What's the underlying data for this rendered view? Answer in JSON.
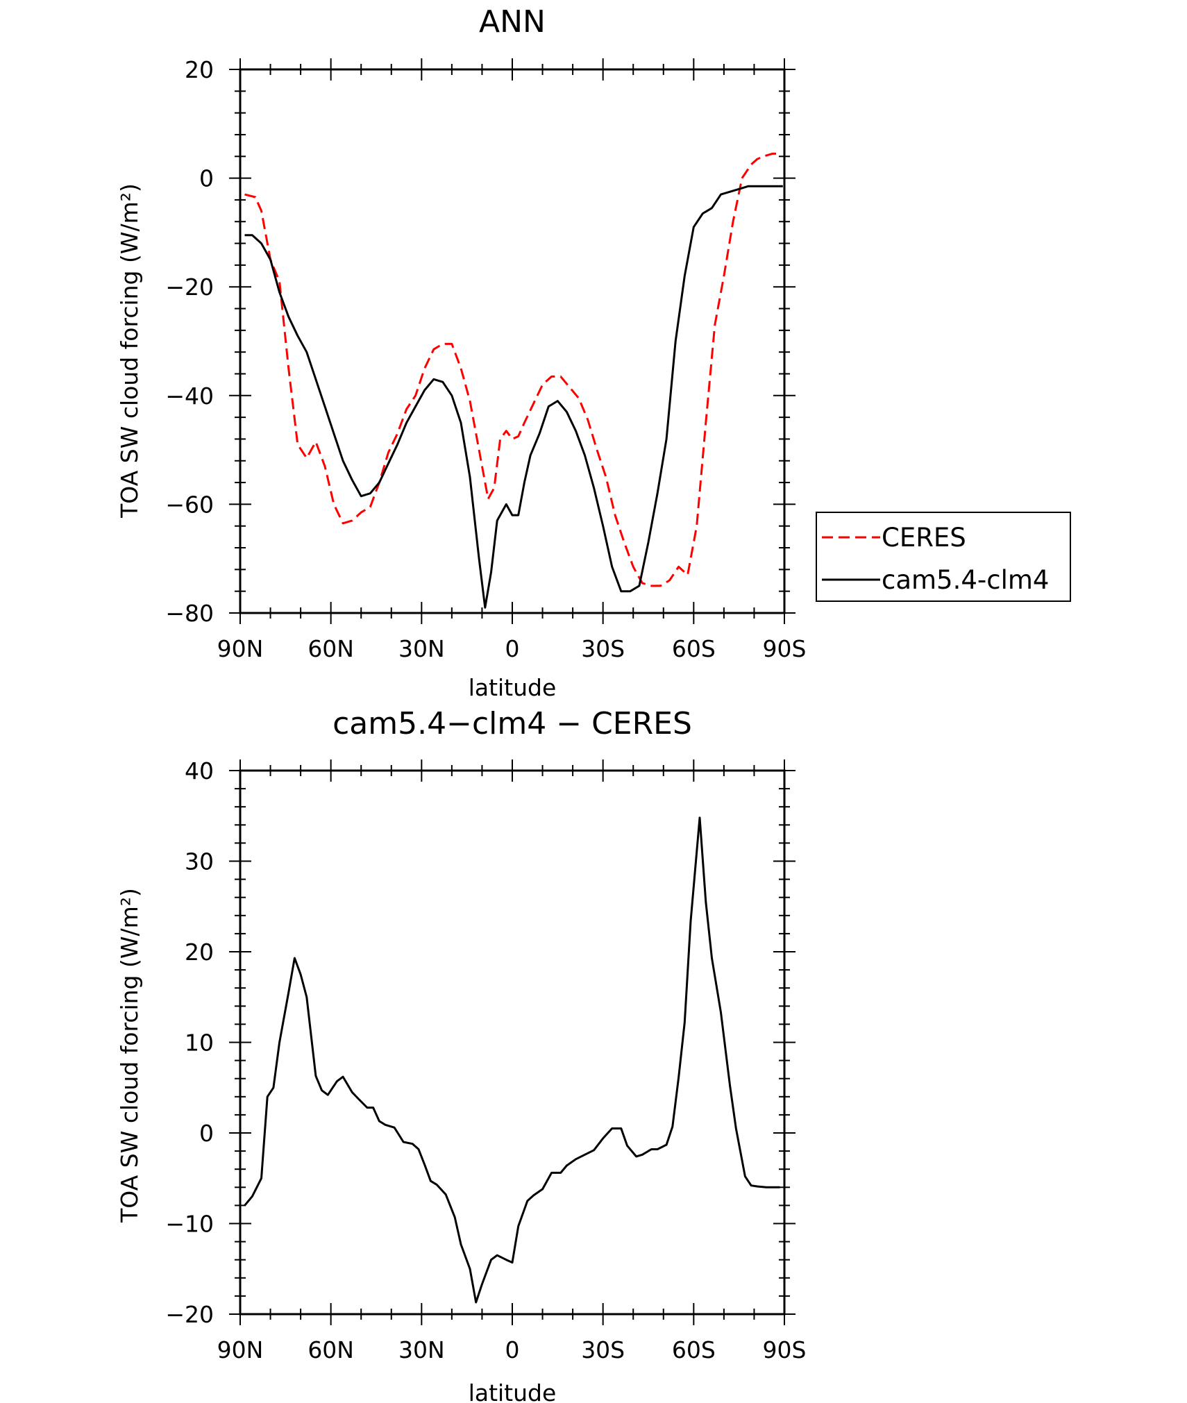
{
  "chart_data": [
    {
      "type": "line",
      "title": "ANN",
      "xlabel": "latitude",
      "ylabel": "TOA SW cloud forcing (W/m²)",
      "xlim": [
        90,
        -90
      ],
      "ylim": [
        -80,
        20
      ],
      "xticks": [
        {
          "value": 90,
          "label": "90N"
        },
        {
          "value": 60,
          "label": "60N"
        },
        {
          "value": 30,
          "label": "30N"
        },
        {
          "value": 0,
          "label": "0"
        },
        {
          "value": -30,
          "label": "30S"
        },
        {
          "value": -60,
          "label": "60S"
        },
        {
          "value": -90,
          "label": "90S"
        }
      ],
      "yticks": [
        {
          "value": 20,
          "label": "20"
        },
        {
          "value": 0,
          "label": "0"
        },
        {
          "value": -20,
          "label": "−20"
        },
        {
          "value": -40,
          "label": "−40"
        },
        {
          "value": -60,
          "label": "−60"
        },
        {
          "value": -80,
          "label": "−80"
        }
      ],
      "legend_position": "right",
      "series": [
        {
          "name": "CERES",
          "color": "#ff0000",
          "dash": "dashed",
          "x": [
            88.5,
            85,
            83,
            80,
            77,
            74,
            71,
            68,
            65,
            62,
            59,
            56,
            53,
            50,
            47,
            44,
            41,
            38,
            35,
            32,
            29,
            26,
            23,
            20,
            17,
            14,
            11,
            8,
            6,
            4,
            2,
            0,
            -2,
            -4,
            -7,
            -10,
            -13,
            -16,
            -19,
            -22,
            -25,
            -28,
            -31,
            -34,
            -37,
            -40,
            -43,
            -46,
            -49,
            -52,
            -55,
            -58,
            -61,
            -64,
            -67,
            -70,
            -73,
            -76,
            -79,
            -81,
            -83,
            -86,
            -89
          ],
          "y": [
            -3,
            -3.5,
            -6,
            -15,
            -19,
            -35,
            -49,
            -51.5,
            -48.5,
            -53,
            -60,
            -63.5,
            -63,
            -61.5,
            -60.5,
            -56,
            -50.5,
            -47,
            -42.5,
            -40,
            -35,
            -31.5,
            -30.5,
            -30.5,
            -35,
            -41,
            -50,
            -59,
            -57,
            -48,
            -46.5,
            -48,
            -47.5,
            -45,
            -41.5,
            -38,
            -36.5,
            -36.5,
            -38.5,
            -40.5,
            -44.5,
            -50,
            -55,
            -62,
            -67,
            -71.5,
            -74.5,
            -75,
            -75,
            -74,
            -71.5,
            -73,
            -64,
            -45,
            -27,
            -18,
            -8,
            0,
            2.5,
            3.5,
            4,
            4.5,
            4.5
          ]
        },
        {
          "name": "cam5.4-clm4",
          "color": "#000000",
          "dash": "solid",
          "x": [
            88.5,
            86,
            83,
            80,
            77,
            74,
            71,
            68,
            65,
            62,
            59,
            56,
            53,
            50,
            47,
            44,
            41,
            38,
            35,
            32,
            29,
            26,
            23,
            20,
            17,
            14,
            11,
            9,
            7,
            5,
            2,
            0,
            -2,
            -4,
            -6,
            -9,
            -12,
            -15,
            -18,
            -21,
            -24,
            -27,
            -30,
            -33,
            -36,
            -39,
            -42,
            -45,
            -48,
            -51,
            -54,
            -57,
            -60,
            -63,
            -66,
            -69,
            -72,
            -75,
            -78,
            -81,
            -84,
            -87,
            -89.5
          ],
          "y": [
            -10.5,
            -10.5,
            -12,
            -15,
            -21,
            -25.5,
            -29,
            -32,
            -37,
            -42,
            -47,
            -52,
            -55.5,
            -58.5,
            -58,
            -56,
            -52.5,
            -49,
            -45,
            -42,
            -39,
            -37,
            -37.5,
            -40,
            -45,
            -55,
            -70,
            -79,
            -72.5,
            -63,
            -60,
            -62,
            -62,
            -56,
            -51,
            -47,
            -42,
            -41,
            -43,
            -46.5,
            -51,
            -57,
            -64,
            -71.5,
            -76,
            -76,
            -75,
            -67,
            -58,
            -48,
            -30,
            -18,
            -9,
            -6.5,
            -5.5,
            -3,
            -2.5,
            -2,
            -1.5,
            -1.5,
            -1.5,
            -1.5,
            -1.5
          ]
        }
      ]
    },
    {
      "type": "line",
      "title": "cam5.4−clm4 − CERES",
      "xlabel": "latitude",
      "ylabel": "TOA SW cloud forcing (W/m²)",
      "xlim": [
        90,
        -90
      ],
      "ylim": [
        -20,
        40
      ],
      "xticks": [
        {
          "value": 90,
          "label": "90N"
        },
        {
          "value": 60,
          "label": "60N"
        },
        {
          "value": 30,
          "label": "30N"
        },
        {
          "value": 0,
          "label": "0"
        },
        {
          "value": -30,
          "label": "30S"
        },
        {
          "value": -60,
          "label": "60S"
        },
        {
          "value": -90,
          "label": "90S"
        }
      ],
      "yticks": [
        {
          "value": 40,
          "label": "40"
        },
        {
          "value": 30,
          "label": "30"
        },
        {
          "value": 20,
          "label": "20"
        },
        {
          "value": 10,
          "label": "10"
        },
        {
          "value": 0,
          "label": "0"
        },
        {
          "value": -10,
          "label": "−10"
        },
        {
          "value": -20,
          "label": "−20"
        }
      ],
      "series": [
        {
          "color": "#000000",
          "dash": "solid",
          "x": [
            88.5,
            86,
            83,
            81,
            79,
            77,
            74,
            72,
            70,
            68,
            65,
            63,
            61,
            58,
            56,
            53,
            51,
            48,
            46,
            44,
            42,
            39,
            36,
            33,
            31,
            29,
            27,
            25,
            22,
            19,
            17,
            14,
            12,
            10,
            7,
            5,
            2,
            0,
            -2,
            -5,
            -7,
            -10,
            -13,
            -16,
            -18,
            -21,
            -24,
            -27,
            -30,
            -33,
            -36,
            -38,
            -41,
            -43,
            -46,
            -48,
            -51,
            -53,
            -55,
            -57,
            -59,
            -62,
            -64,
            -66,
            -69,
            -72,
            -74,
            -77,
            -79,
            -81,
            -84,
            -86,
            -88.5
          ],
          "y": [
            -8,
            -7,
            -5,
            4,
            5,
            10,
            15.5,
            19.3,
            17.5,
            15,
            6.3,
            4.7,
            4.2,
            5.7,
            6.2,
            4.5,
            3.8,
            2.8,
            2.8,
            1.3,
            0.9,
            0.6,
            -1,
            -1.2,
            -1.8,
            -3.5,
            -5.3,
            -5.7,
            -6.8,
            -9.3,
            -12.3,
            -15,
            -18.7,
            -16.7,
            -14,
            -13.5,
            -14,
            -14.3,
            -10.3,
            -7.5,
            -6.9,
            -6.2,
            -4.4,
            -4.4,
            -3.6,
            -2.9,
            -2.4,
            -1.9,
            -0.6,
            0.5,
            0.5,
            -1.4,
            -2.6,
            -2.4,
            -1.8,
            -1.8,
            -1.3,
            0.7,
            6.1,
            12.2,
            23.4,
            34.8,
            25.5,
            19.3,
            13.3,
            5.2,
            0.5,
            -4.8,
            -5.8,
            -5.9,
            -6,
            -6,
            -6
          ]
        }
      ]
    }
  ]
}
